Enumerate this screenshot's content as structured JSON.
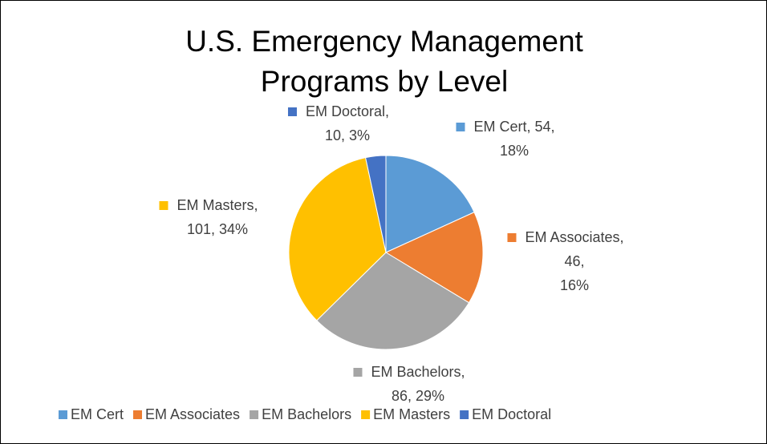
{
  "chart_data": {
    "type": "pie",
    "title": "U.S. Emergency Management Programs by Level",
    "categories": [
      "EM Cert",
      "EM Associates",
      "EM Bachelors",
      "EM Masters",
      "EM Doctoral"
    ],
    "values": [
      54,
      46,
      86,
      101,
      10
    ],
    "value_labels": [
      [
        "EM Cert, 54,",
        "18%"
      ],
      [
        "EM Associates,",
        "46,",
        "16%"
      ],
      [
        "EM Bachelors,",
        "86, 29%"
      ],
      [
        "EM Masters,",
        "101, 34%"
      ],
      [
        "EM Doctoral,",
        "10, 3%"
      ]
    ],
    "colors": [
      "#5b9bd5",
      "#ed7d31",
      "#a5a5a5",
      "#ffc000",
      "#4472c4"
    ],
    "legend": "bottom"
  }
}
